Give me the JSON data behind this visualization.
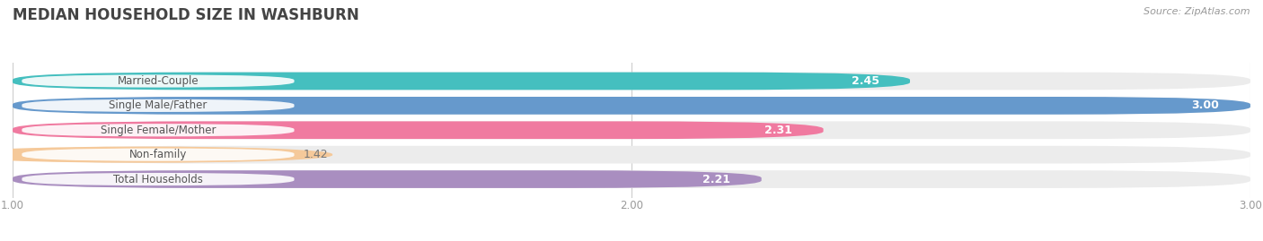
{
  "title": "MEDIAN HOUSEHOLD SIZE IN WASHBURN",
  "source": "Source: ZipAtlas.com",
  "categories": [
    "Married-Couple",
    "Single Male/Father",
    "Single Female/Mother",
    "Non-family",
    "Total Households"
  ],
  "values": [
    2.45,
    3.0,
    2.31,
    1.42,
    2.21
  ],
  "bar_colors": [
    "#45BFBF",
    "#6699CC",
    "#F07AA0",
    "#F5C99A",
    "#A98EC0"
  ],
  "bar_bg_color": "#ECECEC",
  "xlim_min": 1.0,
  "xlim_max": 3.0,
  "xticks": [
    1.0,
    2.0,
    3.0
  ],
  "bar_height": 0.72,
  "fig_bg_color": "#FFFFFF",
  "title_color": "#444444",
  "title_fontsize": 12,
  "value_fontsize": 9,
  "label_fontsize": 8.5,
  "source_fontsize": 8,
  "tick_fontsize": 8.5,
  "value_inside_color": "#FFFFFF",
  "value_outside_color": "#777777",
  "label_text_color": "#555555"
}
